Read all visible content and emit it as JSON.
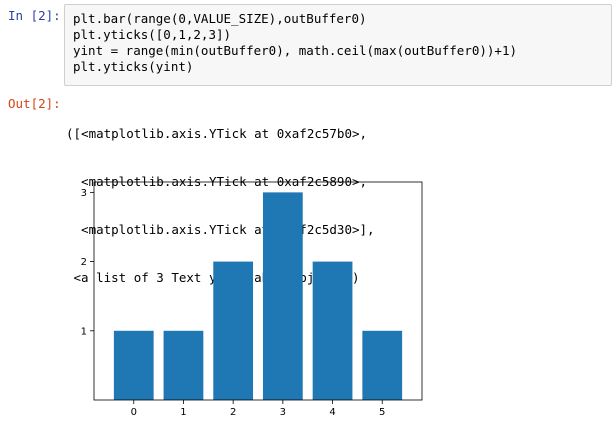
{
  "cell": {
    "in_prompt": "In [2]:",
    "out_prompt": "Out[2]:",
    "code_lines": [
      "plt.bar(range(0,VALUE_SIZE),outBuffer0)",
      "plt.yticks([0,1,2,3])",
      "yint = range(min(outBuffer0), math.ceil(max(outBuffer0))+1)",
      "plt.yticks(yint)"
    ],
    "output_lines": [
      "([<matplotlib.axis.YTick at 0xaf2c57b0>,",
      "  <matplotlib.axis.YTick at 0xaf2c5890>,",
      "  <matplotlib.axis.YTick at 0xaf2c5d30>],",
      " <a list of 3 Text yticklabel objects>)"
    ]
  },
  "chart_data": {
    "type": "bar",
    "categories": [
      "0",
      "1",
      "2",
      "3",
      "4",
      "5"
    ],
    "values": [
      1,
      1,
      2,
      3,
      2,
      1
    ],
    "yticks": [
      1,
      2,
      3
    ],
    "ylim": [
      0,
      3.15
    ],
    "bar_color": "#1f77b4",
    "title": "",
    "xlabel": "",
    "ylabel": "",
    "grid": false
  }
}
